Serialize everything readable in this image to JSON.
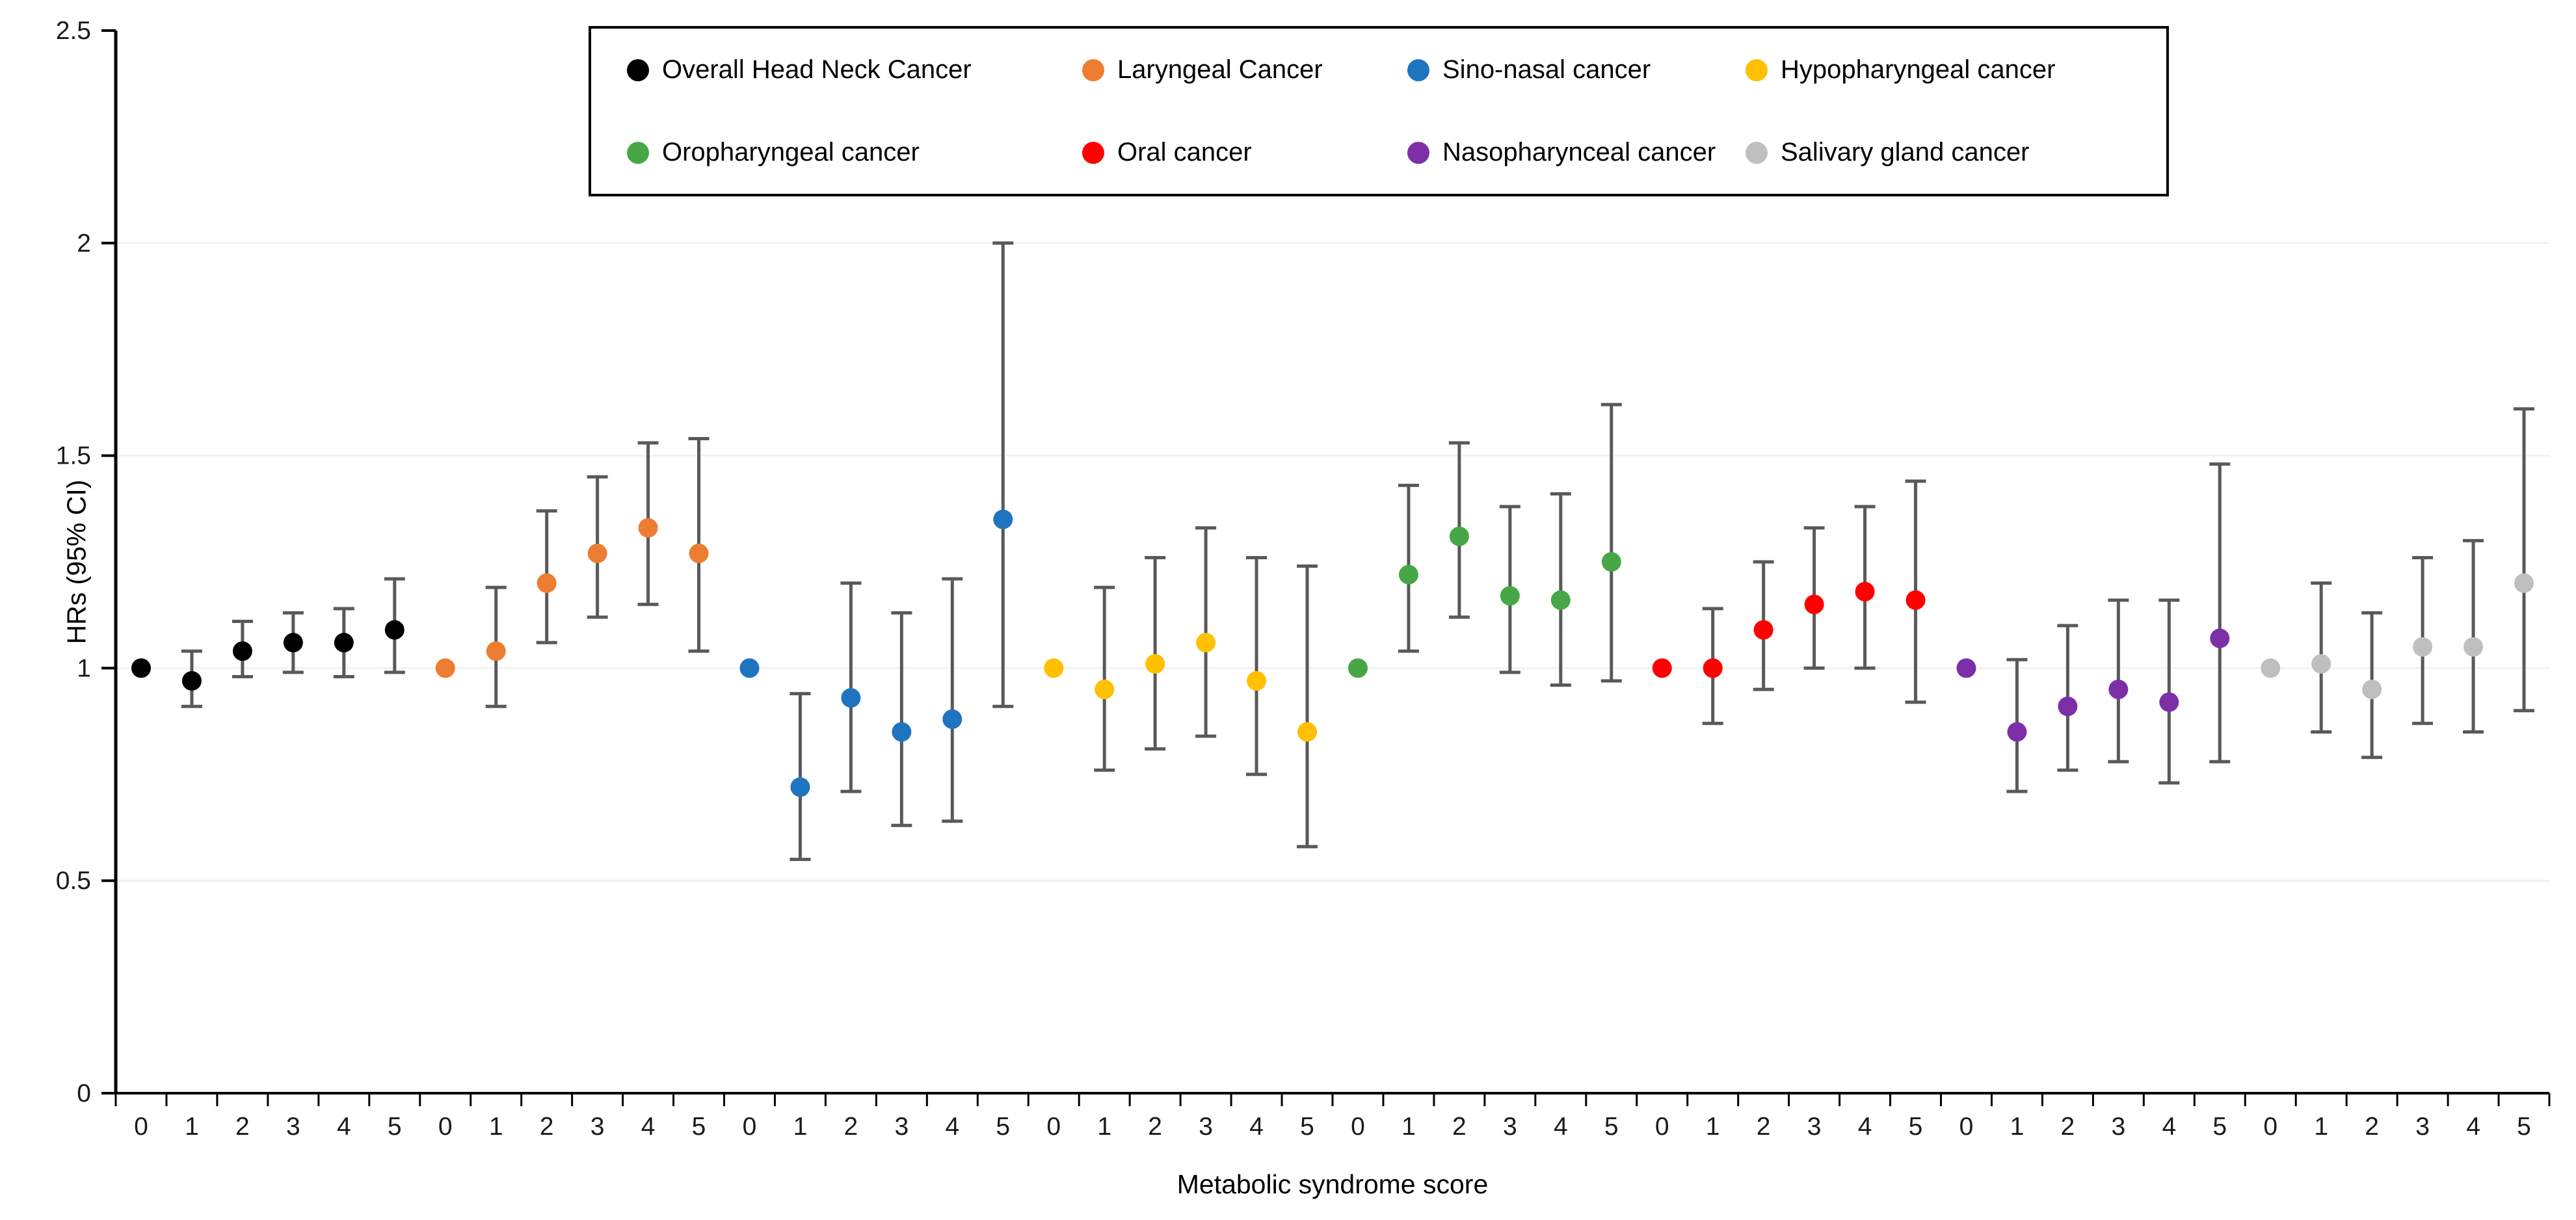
{
  "chart_data": {
    "type": "scatter",
    "subtype": "point-estimates-with-95ci-error-bars",
    "title": "",
    "xlabel": "Metabolic syndrome score",
    "ylabel": "HRs (95% CI)",
    "ylim": [
      0,
      2.5
    ],
    "yticks": [
      0,
      0.5,
      1,
      1.5,
      2,
      2.5
    ],
    "ytick_labels": [
      "0",
      "0.5",
      "1",
      "1.5",
      "2",
      "2.5"
    ],
    "scores": [
      "0",
      "1",
      "2",
      "3",
      "4",
      "5"
    ],
    "grid": "horizontal-light",
    "legend_position": "top-center-boxed",
    "gridline_color": "#F2F2F2",
    "error_bar_color": "#595959",
    "axis_color": "#000000",
    "tick_label_color": "#1a1a1a",
    "series": [
      {
        "name": "Overall Head Neck Cancer",
        "color": "#000000",
        "points": [
          {
            "score": "0",
            "hr": 1.0,
            "lo": null,
            "hi": null
          },
          {
            "score": "1",
            "hr": 0.97,
            "lo": 0.91,
            "hi": 1.04
          },
          {
            "score": "2",
            "hr": 1.04,
            "lo": 0.98,
            "hi": 1.11
          },
          {
            "score": "3",
            "hr": 1.06,
            "lo": 0.99,
            "hi": 1.13
          },
          {
            "score": "4",
            "hr": 1.06,
            "lo": 0.98,
            "hi": 1.14
          },
          {
            "score": "5",
            "hr": 1.09,
            "lo": 0.99,
            "hi": 1.21
          }
        ]
      },
      {
        "name": "Laryngeal Cancer",
        "color": "#ED7D31",
        "points": [
          {
            "score": "0",
            "hr": 1.0,
            "lo": null,
            "hi": null
          },
          {
            "score": "1",
            "hr": 1.04,
            "lo": 0.91,
            "hi": 1.19
          },
          {
            "score": "2",
            "hr": 1.2,
            "lo": 1.06,
            "hi": 1.37
          },
          {
            "score": "3",
            "hr": 1.27,
            "lo": 1.12,
            "hi": 1.45
          },
          {
            "score": "4",
            "hr": 1.33,
            "lo": 1.15,
            "hi": 1.53
          },
          {
            "score": "5",
            "hr": 1.27,
            "lo": 1.04,
            "hi": 1.54
          }
        ]
      },
      {
        "name": "Sino-nasal cancer",
        "color": "#1F74C0",
        "points": [
          {
            "score": "0",
            "hr": 1.0,
            "lo": null,
            "hi": null
          },
          {
            "score": "1",
            "hr": 0.72,
            "lo": 0.55,
            "hi": 0.94
          },
          {
            "score": "2",
            "hr": 0.93,
            "lo": 0.71,
            "hi": 1.2
          },
          {
            "score": "3",
            "hr": 0.85,
            "lo": 0.63,
            "hi": 1.13
          },
          {
            "score": "4",
            "hr": 0.88,
            "lo": 0.64,
            "hi": 1.21
          },
          {
            "score": "5",
            "hr": 1.35,
            "lo": 0.91,
            "hi": 2.0
          }
        ]
      },
      {
        "name": "Hypopharyngeal cancer",
        "color": "#FFC000",
        "points": [
          {
            "score": "0",
            "hr": 1.0,
            "lo": null,
            "hi": null
          },
          {
            "score": "1",
            "hr": 0.95,
            "lo": 0.76,
            "hi": 1.19
          },
          {
            "score": "2",
            "hr": 1.01,
            "lo": 0.81,
            "hi": 1.26
          },
          {
            "score": "3",
            "hr": 1.06,
            "lo": 0.84,
            "hi": 1.33
          },
          {
            "score": "4",
            "hr": 0.97,
            "lo": 0.75,
            "hi": 1.26
          },
          {
            "score": "5",
            "hr": 0.85,
            "lo": 0.58,
            "hi": 1.24
          }
        ]
      },
      {
        "name": "Oropharyngeal cancer",
        "color": "#47A747",
        "points": [
          {
            "score": "0",
            "hr": 1.0,
            "lo": null,
            "hi": null
          },
          {
            "score": "1",
            "hr": 1.22,
            "lo": 1.04,
            "hi": 1.43
          },
          {
            "score": "2",
            "hr": 1.31,
            "lo": 1.12,
            "hi": 1.53
          },
          {
            "score": "3",
            "hr": 1.17,
            "lo": 0.99,
            "hi": 1.38
          },
          {
            "score": "4",
            "hr": 1.16,
            "lo": 0.96,
            "hi": 1.41
          },
          {
            "score": "5",
            "hr": 1.25,
            "lo": 0.97,
            "hi": 1.62
          }
        ]
      },
      {
        "name": "Oral cancer",
        "color": "#FF0000",
        "points": [
          {
            "score": "0",
            "hr": 1.0,
            "lo": null,
            "hi": null
          },
          {
            "score": "1",
            "hr": 1.0,
            "lo": 0.87,
            "hi": 1.14
          },
          {
            "score": "2",
            "hr": 1.09,
            "lo": 0.95,
            "hi": 1.25
          },
          {
            "score": "3",
            "hr": 1.15,
            "lo": 1.0,
            "hi": 1.33
          },
          {
            "score": "4",
            "hr": 1.18,
            "lo": 1.0,
            "hi": 1.38
          },
          {
            "score": "5",
            "hr": 1.16,
            "lo": 0.92,
            "hi": 1.44
          }
        ]
      },
      {
        "name": "Nasopharynceal cancer",
        "color": "#7D2FA8",
        "points": [
          {
            "score": "0",
            "hr": 1.0,
            "lo": null,
            "hi": null
          },
          {
            "score": "1",
            "hr": 0.85,
            "lo": 0.71,
            "hi": 1.02
          },
          {
            "score": "2",
            "hr": 0.91,
            "lo": 0.76,
            "hi": 1.1
          },
          {
            "score": "3",
            "hr": 0.95,
            "lo": 0.78,
            "hi": 1.16
          },
          {
            "score": "4",
            "hr": 0.92,
            "lo": 0.73,
            "hi": 1.16
          },
          {
            "score": "5",
            "hr": 1.07,
            "lo": 0.78,
            "hi": 1.48
          }
        ]
      },
      {
        "name": "Salivary gland cancer",
        "color": "#BFBFBF",
        "points": [
          {
            "score": "0",
            "hr": 1.0,
            "lo": null,
            "hi": null
          },
          {
            "score": "1",
            "hr": 1.01,
            "lo": 0.85,
            "hi": 1.2
          },
          {
            "score": "2",
            "hr": 0.95,
            "lo": 0.79,
            "hi": 1.13
          },
          {
            "score": "3",
            "hr": 1.05,
            "lo": 0.87,
            "hi": 1.26
          },
          {
            "score": "4",
            "hr": 1.05,
            "lo": 0.85,
            "hi": 1.3
          },
          {
            "score": "5",
            "hr": 1.2,
            "lo": 0.9,
            "hi": 1.61
          }
        ]
      }
    ]
  }
}
